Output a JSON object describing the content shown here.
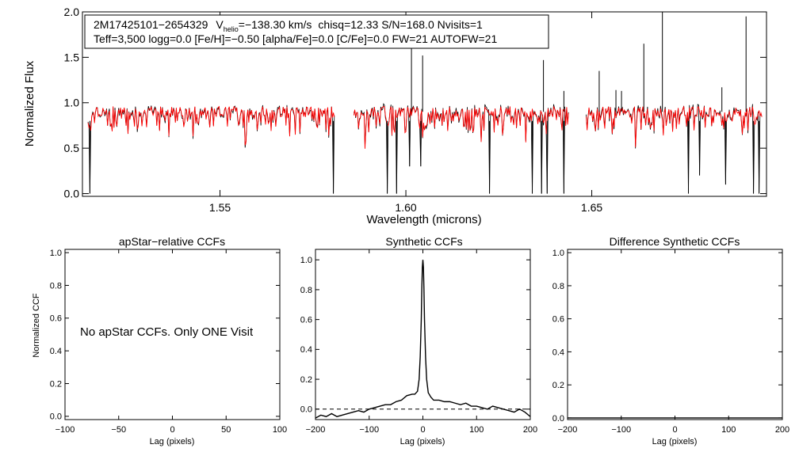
{
  "colors": {
    "observed": "#000000",
    "model": "#ff0000",
    "axes": "#000000"
  },
  "chart_data": [
    {
      "type": "line",
      "title": "",
      "xlabel": "Wavelength (microns)",
      "ylabel": "Normalized Flux",
      "xlim": [
        1.513,
        1.697
      ],
      "ylim": [
        -0.03,
        2.0
      ],
      "xticks": [
        {
          "value": 1.55,
          "label": "1.55"
        },
        {
          "value": 1.6,
          "label": "1.60"
        },
        {
          "value": 1.65,
          "label": "1.65"
        }
      ],
      "yticks": [
        {
          "value": 0.0,
          "label": "0.0"
        },
        {
          "value": 0.5,
          "label": "0.5"
        },
        {
          "value": 1.0,
          "label": "1.0"
        },
        {
          "value": 1.5,
          "label": "1.5"
        },
        {
          "value": 2.0,
          "label": "2.0"
        }
      ],
      "annotation": {
        "line1": {
          "id": "2M17425101−2654329",
          "vhelio_symbol": "V",
          "vhelio_sub": "helio",
          "vhelio_value": "=−138.30 km/s",
          "rest": "chisq=12.33  S/N=168.0  Nvisits=1"
        },
        "line2": "Teff=3,500 logg=0.0 [Fe/H]=−0.50 [alpha/Fe]=0.0 [C/Fe]=0.0 FW=21 AUTOFW=21"
      },
      "segments": [
        {
          "x0": 1.5145,
          "x1": 1.581
        },
        {
          "x0": 1.586,
          "x1": 1.644
        },
        {
          "x0": 1.6485,
          "x1": 1.696
        }
      ],
      "continuum_level": 0.9,
      "emission_spikes": [
        {
          "x": 1.6015,
          "y": 1.63
        },
        {
          "x": 1.6045,
          "y": 1.52
        },
        {
          "x": 1.637,
          "y": 1.47
        },
        {
          "x": 1.6425,
          "y": 1.13
        },
        {
          "x": 1.652,
          "y": 1.35
        },
        {
          "x": 1.6565,
          "y": 1.14
        },
        {
          "x": 1.658,
          "y": 1.13
        },
        {
          "x": 1.664,
          "y": 1.65
        },
        {
          "x": 1.669,
          "y": 2.0
        },
        {
          "x": 1.685,
          "y": 1.17
        },
        {
          "x": 1.6915,
          "y": 1.95
        }
      ],
      "deep_absorptions": [
        {
          "x": 1.515,
          "y": 0.0
        },
        {
          "x": 1.5805,
          "y": 0.0
        },
        {
          "x": 1.595,
          "y": 0.0
        },
        {
          "x": 1.5975,
          "y": 0.0
        },
        {
          "x": 1.601,
          "y": 0.3
        },
        {
          "x": 1.604,
          "y": 0.3
        },
        {
          "x": 1.6225,
          "y": 0.0
        },
        {
          "x": 1.634,
          "y": 0.0
        },
        {
          "x": 1.6365,
          "y": 0.0
        },
        {
          "x": 1.638,
          "y": 0.0
        },
        {
          "x": 1.6425,
          "y": 0.0
        },
        {
          "x": 1.676,
          "y": 0.0
        },
        {
          "x": 1.679,
          "y": 0.2
        },
        {
          "x": 1.686,
          "y": 0.1
        },
        {
          "x": 1.6935,
          "y": 0.0
        },
        {
          "x": 1.695,
          "y": 0.0
        }
      ]
    },
    {
      "type": "line",
      "title": "apStar−relative CCFs",
      "xlabel": "Lag (pixels)",
      "ylabel": "Normalized CCF",
      "xlim": [
        -100,
        100
      ],
      "ylim": [
        -0.02,
        1.02
      ],
      "xticks": [
        {
          "value": -100,
          "label": "−100"
        },
        {
          "value": -50,
          "label": "−50"
        },
        {
          "value": 0,
          "label": "0"
        },
        {
          "value": 50,
          "label": "50"
        },
        {
          "value": 100,
          "label": "100"
        }
      ],
      "yticks": [
        {
          "value": 0.0,
          "label": "0.0"
        },
        {
          "value": 0.2,
          "label": "0.2"
        },
        {
          "value": 0.4,
          "label": "0.4"
        },
        {
          "value": 0.6,
          "label": "0.6"
        },
        {
          "value": 0.8,
          "label": "0.8"
        },
        {
          "value": 1.0,
          "label": "1.0"
        }
      ],
      "message": "No apStar CCFs.  Only ONE Visit",
      "series": []
    },
    {
      "type": "line",
      "title": "Synthetic CCFs",
      "xlabel": "Lag (pixels)",
      "ylabel": "",
      "xlim": [
        -200,
        200
      ],
      "ylim": [
        -0.07,
        1.07
      ],
      "xticks": [
        {
          "value": -200,
          "label": "−200"
        },
        {
          "value": -100,
          "label": "−100"
        },
        {
          "value": 0,
          "label": "0"
        },
        {
          "value": 100,
          "label": "100"
        },
        {
          "value": 200,
          "label": "200"
        }
      ],
      "yticks": [
        {
          "value": 0.0,
          "label": "0.0"
        },
        {
          "value": 0.2,
          "label": "0.2"
        },
        {
          "value": 0.4,
          "label": "0.4"
        },
        {
          "value": 0.6,
          "label": "0.6"
        },
        {
          "value": 0.8,
          "label": "0.8"
        },
        {
          "value": 1.0,
          "label": "1.0"
        }
      ],
      "reference_line": {
        "y": 0.0,
        "style": "dashed"
      },
      "series": [
        {
          "x": [
            -200,
            -190,
            -180,
            -170,
            -160,
            -150,
            -140,
            -130,
            -120,
            -110,
            -100,
            -90,
            -80,
            -70,
            -60,
            -50,
            -40,
            -30,
            -20,
            -15,
            -10,
            -7,
            -5,
            -3,
            -2,
            -1,
            0,
            1,
            2,
            3,
            5,
            7,
            10,
            15,
            20,
            30,
            40,
            50,
            60,
            70,
            80,
            90,
            100,
            110,
            120,
            130,
            140,
            150,
            160,
            170,
            180,
            190,
            200
          ],
          "y": [
            -0.06,
            -0.04,
            -0.05,
            -0.03,
            -0.05,
            -0.04,
            -0.03,
            -0.02,
            -0.01,
            -0.02,
            0.0,
            0.01,
            0.02,
            0.03,
            0.03,
            0.05,
            0.06,
            0.09,
            0.1,
            0.1,
            0.12,
            0.2,
            0.35,
            0.6,
            0.8,
            0.95,
            1.0,
            0.95,
            0.8,
            0.6,
            0.35,
            0.2,
            0.11,
            0.08,
            0.06,
            0.06,
            0.05,
            0.05,
            0.04,
            0.03,
            0.04,
            0.02,
            0.02,
            0.01,
            0.0,
            0.02,
            0.01,
            0.0,
            -0.01,
            -0.02,
            0.0,
            -0.02,
            -0.05
          ]
        }
      ]
    },
    {
      "type": "line",
      "title": "Difference Synthetic CCFs",
      "xlabel": "Lag (pixels)",
      "ylabel": "",
      "xlim": [
        -200,
        200
      ],
      "ylim": [
        -0.01,
        1.02
      ],
      "xticks": [
        {
          "value": -200,
          "label": "−200"
        },
        {
          "value": -100,
          "label": "−100"
        },
        {
          "value": 0,
          "label": "0"
        },
        {
          "value": 100,
          "label": "100"
        },
        {
          "value": 200,
          "label": "200"
        }
      ],
      "yticks": [
        {
          "value": 0.0,
          "label": "0.0"
        },
        {
          "value": 0.2,
          "label": "0.2"
        },
        {
          "value": 0.4,
          "label": "0.4"
        },
        {
          "value": 0.6,
          "label": "0.6"
        },
        {
          "value": 0.8,
          "label": "0.8"
        },
        {
          "value": 1.0,
          "label": "1.0"
        }
      ],
      "series": [
        {
          "x": [
            -200,
            200
          ],
          "y": [
            0.0,
            0.0
          ]
        }
      ]
    }
  ]
}
